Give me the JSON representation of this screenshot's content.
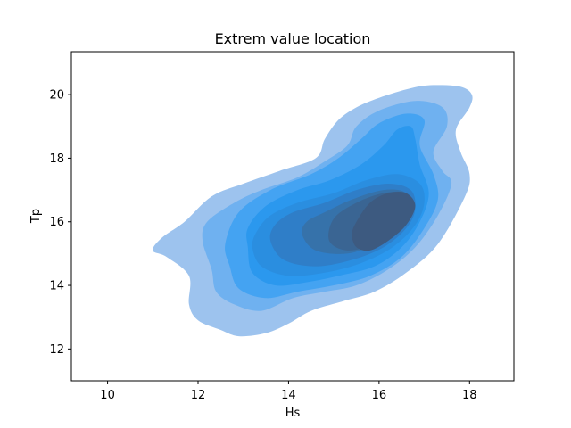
{
  "chart_data": {
    "type": "kde-contour",
    "title": "Extrem value location",
    "xlabel": "Hs",
    "ylabel": "Tp",
    "xlim": [
      9.2,
      18.98
    ],
    "ylim": [
      11.0,
      21.35
    ],
    "x_ticks": [
      10,
      12,
      14,
      16,
      18
    ],
    "y_ticks": [
      12,
      14,
      16,
      18,
      20
    ],
    "grid": false,
    "legend": "none",
    "fill_color": "#1f8fee",
    "levels": [
      {
        "level": 1,
        "polygon": [
          [
            11.0,
            15.1
          ],
          [
            11.3,
            14.9
          ],
          [
            11.8,
            14.3
          ],
          [
            11.8,
            13.4
          ],
          [
            12.0,
            12.9
          ],
          [
            12.5,
            12.6
          ],
          [
            12.9,
            12.4
          ],
          [
            13.5,
            12.5
          ],
          [
            14.0,
            12.8
          ],
          [
            14.5,
            13.2
          ],
          [
            15.2,
            13.5
          ],
          [
            15.9,
            13.8
          ],
          [
            16.6,
            14.4
          ],
          [
            17.3,
            15.3
          ],
          [
            17.9,
            16.8
          ],
          [
            18.0,
            17.5
          ],
          [
            17.8,
            18.2
          ],
          [
            17.7,
            18.9
          ],
          [
            18.0,
            19.6
          ],
          [
            18.05,
            20.0
          ],
          [
            17.8,
            20.25
          ],
          [
            17.2,
            20.3
          ],
          [
            16.7,
            20.2
          ],
          [
            16.0,
            19.9
          ],
          [
            15.5,
            19.6
          ],
          [
            15.1,
            19.2
          ],
          [
            14.8,
            18.6
          ],
          [
            14.6,
            18.0
          ],
          [
            13.8,
            17.6
          ],
          [
            13.0,
            17.2
          ],
          [
            12.3,
            16.8
          ],
          [
            11.7,
            16.0
          ],
          [
            11.2,
            15.5
          ],
          [
            11.0,
            15.1
          ]
        ]
      },
      {
        "level": 2,
        "polygon": [
          [
            12.1,
            15.4
          ],
          [
            12.3,
            14.5
          ],
          [
            12.4,
            13.8
          ],
          [
            12.8,
            13.4
          ],
          [
            13.4,
            13.2
          ],
          [
            14.1,
            13.6
          ],
          [
            14.8,
            13.8
          ],
          [
            15.5,
            14.0
          ],
          [
            16.2,
            14.5
          ],
          [
            16.8,
            15.2
          ],
          [
            17.3,
            16.2
          ],
          [
            17.6,
            17.2
          ],
          [
            17.4,
            17.6
          ],
          [
            17.2,
            18.2
          ],
          [
            17.5,
            19.0
          ],
          [
            17.4,
            19.6
          ],
          [
            16.8,
            19.8
          ],
          [
            16.0,
            19.5
          ],
          [
            15.5,
            19.0
          ],
          [
            15.3,
            18.4
          ],
          [
            14.8,
            17.9
          ],
          [
            14.2,
            17.4
          ],
          [
            13.4,
            17.0
          ],
          [
            12.8,
            16.6
          ],
          [
            12.2,
            16.0
          ],
          [
            12.1,
            15.4
          ]
        ]
      },
      {
        "level": 3,
        "polygon": [
          [
            12.6,
            15.3
          ],
          [
            12.7,
            14.6
          ],
          [
            12.9,
            13.9
          ],
          [
            13.5,
            13.6
          ],
          [
            14.2,
            13.8
          ],
          [
            15.0,
            14.0
          ],
          [
            15.8,
            14.3
          ],
          [
            16.5,
            14.9
          ],
          [
            17.0,
            15.8
          ],
          [
            17.3,
            16.7
          ],
          [
            17.2,
            17.5
          ],
          [
            16.9,
            18.4
          ],
          [
            17.0,
            19.2
          ],
          [
            16.6,
            19.4
          ],
          [
            16.0,
            19.1
          ],
          [
            15.6,
            18.6
          ],
          [
            15.1,
            18.0
          ],
          [
            14.5,
            17.5
          ],
          [
            13.6,
            17.0
          ],
          [
            12.9,
            16.3
          ],
          [
            12.6,
            15.3
          ]
        ]
      },
      {
        "level": 4,
        "polygon": [
          [
            13.1,
            15.2
          ],
          [
            13.2,
            14.4
          ],
          [
            13.7,
            14.0
          ],
          [
            14.4,
            14.1
          ],
          [
            15.1,
            14.3
          ],
          [
            15.9,
            14.6
          ],
          [
            16.5,
            15.2
          ],
          [
            16.9,
            16.0
          ],
          [
            17.1,
            16.9
          ],
          [
            16.9,
            17.8
          ],
          [
            16.8,
            18.6
          ],
          [
            16.7,
            19.0
          ],
          [
            16.4,
            18.9
          ],
          [
            16.1,
            18.4
          ],
          [
            15.6,
            17.8
          ],
          [
            14.9,
            17.3
          ],
          [
            14.2,
            17.0
          ],
          [
            13.5,
            16.5
          ],
          [
            13.1,
            15.8
          ],
          [
            13.1,
            15.2
          ]
        ]
      },
      {
        "level": 5,
        "polygon": [
          [
            13.2,
            15.2
          ],
          [
            13.4,
            14.6
          ],
          [
            14.0,
            14.3
          ],
          [
            14.8,
            14.4
          ],
          [
            15.6,
            14.7
          ],
          [
            16.3,
            15.2
          ],
          [
            16.8,
            15.9
          ],
          [
            17.0,
            16.6
          ],
          [
            16.9,
            17.2
          ],
          [
            16.4,
            17.5
          ],
          [
            15.7,
            17.3
          ],
          [
            15.0,
            16.9
          ],
          [
            14.2,
            16.6
          ],
          [
            13.6,
            16.2
          ],
          [
            13.3,
            15.7
          ],
          [
            13.2,
            15.2
          ]
        ]
      },
      {
        "level": 6,
        "polygon": [
          [
            13.6,
            15.4
          ],
          [
            13.9,
            14.8
          ],
          [
            14.6,
            14.6
          ],
          [
            15.4,
            14.8
          ],
          [
            16.1,
            15.2
          ],
          [
            16.6,
            15.8
          ],
          [
            16.8,
            16.4
          ],
          [
            16.7,
            17.0
          ],
          [
            16.2,
            17.2
          ],
          [
            15.5,
            17.0
          ],
          [
            14.8,
            16.6
          ],
          [
            14.1,
            16.3
          ],
          [
            13.7,
            15.9
          ],
          [
            13.6,
            15.4
          ]
        ]
      },
      {
        "level": 7,
        "polygon": [
          [
            14.3,
            15.6
          ],
          [
            14.6,
            15.1
          ],
          [
            15.3,
            15.0
          ],
          [
            15.9,
            15.3
          ],
          [
            16.4,
            15.7
          ],
          [
            16.7,
            16.3
          ],
          [
            16.6,
            16.9
          ],
          [
            16.1,
            17.0
          ],
          [
            15.4,
            16.7
          ],
          [
            14.8,
            16.3
          ],
          [
            14.4,
            16.0
          ],
          [
            14.3,
            15.6
          ]
        ]
      },
      {
        "level": 8,
        "polygon": [
          [
            14.9,
            15.4
          ],
          [
            15.3,
            15.1
          ],
          [
            15.9,
            15.3
          ],
          [
            16.4,
            15.8
          ],
          [
            16.7,
            16.4
          ],
          [
            16.6,
            16.9
          ],
          [
            16.1,
            16.9
          ],
          [
            15.5,
            16.6
          ],
          [
            15.0,
            16.1
          ],
          [
            14.9,
            15.4
          ]
        ]
      },
      {
        "level": 9,
        "polygon": [
          [
            15.5,
            15.2
          ],
          [
            15.8,
            15.1
          ],
          [
            16.2,
            15.4
          ],
          [
            16.6,
            15.9
          ],
          [
            16.8,
            16.5
          ],
          [
            16.6,
            16.9
          ],
          [
            16.2,
            16.9
          ],
          [
            15.8,
            16.6
          ],
          [
            15.5,
            16.0
          ],
          [
            15.4,
            15.6
          ],
          [
            15.5,
            15.2
          ]
        ]
      }
    ]
  }
}
